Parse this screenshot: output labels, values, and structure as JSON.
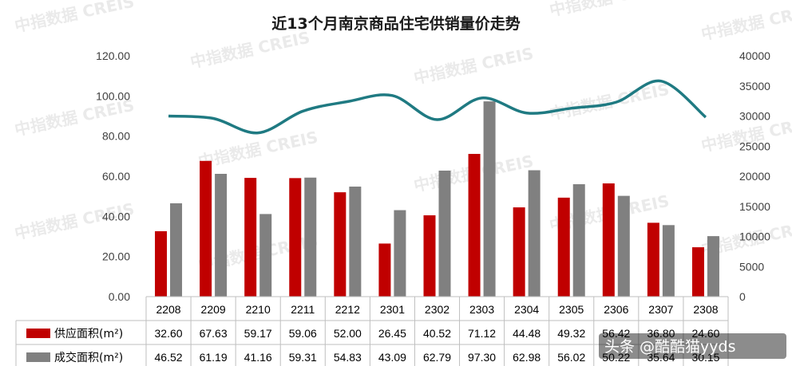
{
  "chart_data": {
    "type": "bar",
    "title": "近13个月南京商品住宅供销量价走势",
    "categories": [
      "2208",
      "2209",
      "2210",
      "2211",
      "2212",
      "2301",
      "2302",
      "2303",
      "2304",
      "2305",
      "2306",
      "2307",
      "2308"
    ],
    "series": [
      {
        "name": "供应面积(m²)",
        "type": "bar",
        "axis": "left",
        "color": "#c00000",
        "values": [
          32.6,
          67.63,
          59.17,
          59.06,
          52.0,
          26.45,
          40.52,
          71.12,
          44.48,
          49.32,
          56.42,
          36.8,
          24.6
        ],
        "labels": [
          "32.60",
          "67.63",
          "59.17",
          "59.06",
          "52.00",
          "26.45",
          "40.52",
          "71.12",
          "44.48",
          "49.32",
          "56.42",
          "36.80",
          "24.60"
        ]
      },
      {
        "name": "成交面积(m²)",
        "type": "bar",
        "axis": "left",
        "color": "#808080",
        "values": [
          46.52,
          61.19,
          41.16,
          59.31,
          54.83,
          43.09,
          62.79,
          97.3,
          62.98,
          56.02,
          50.22,
          35.64,
          30.15
        ],
        "labels": [
          "46.52",
          "61.19",
          "41.16",
          "59.31",
          "54.83",
          "43.09",
          "62.79",
          "97.30",
          "62.98",
          "56.02",
          "50.22",
          "35.64",
          "30.15"
        ]
      },
      {
        "type": "line",
        "axis": "right",
        "color": "#1f7a82",
        "values": [
          30000,
          29600,
          27200,
          30800,
          32400,
          33400,
          29400,
          33000,
          30500,
          31300,
          32300,
          35800,
          29800
        ]
      }
    ],
    "ylim_left": [
      0,
      120
    ],
    "yticks_left": [
      "0.00",
      "20.00",
      "40.00",
      "60.00",
      "80.00",
      "100.00",
      "120.00"
    ],
    "ylim_right": [
      0,
      40000
    ],
    "yticks_right": [
      "0",
      "5000",
      "10000",
      "15000",
      "20000",
      "25000",
      "30000",
      "35000",
      "40000"
    ],
    "legend_placement": "table-below"
  },
  "watermark": "中指数据 CREIS",
  "credit": "头条 @酷酷猫yyds"
}
